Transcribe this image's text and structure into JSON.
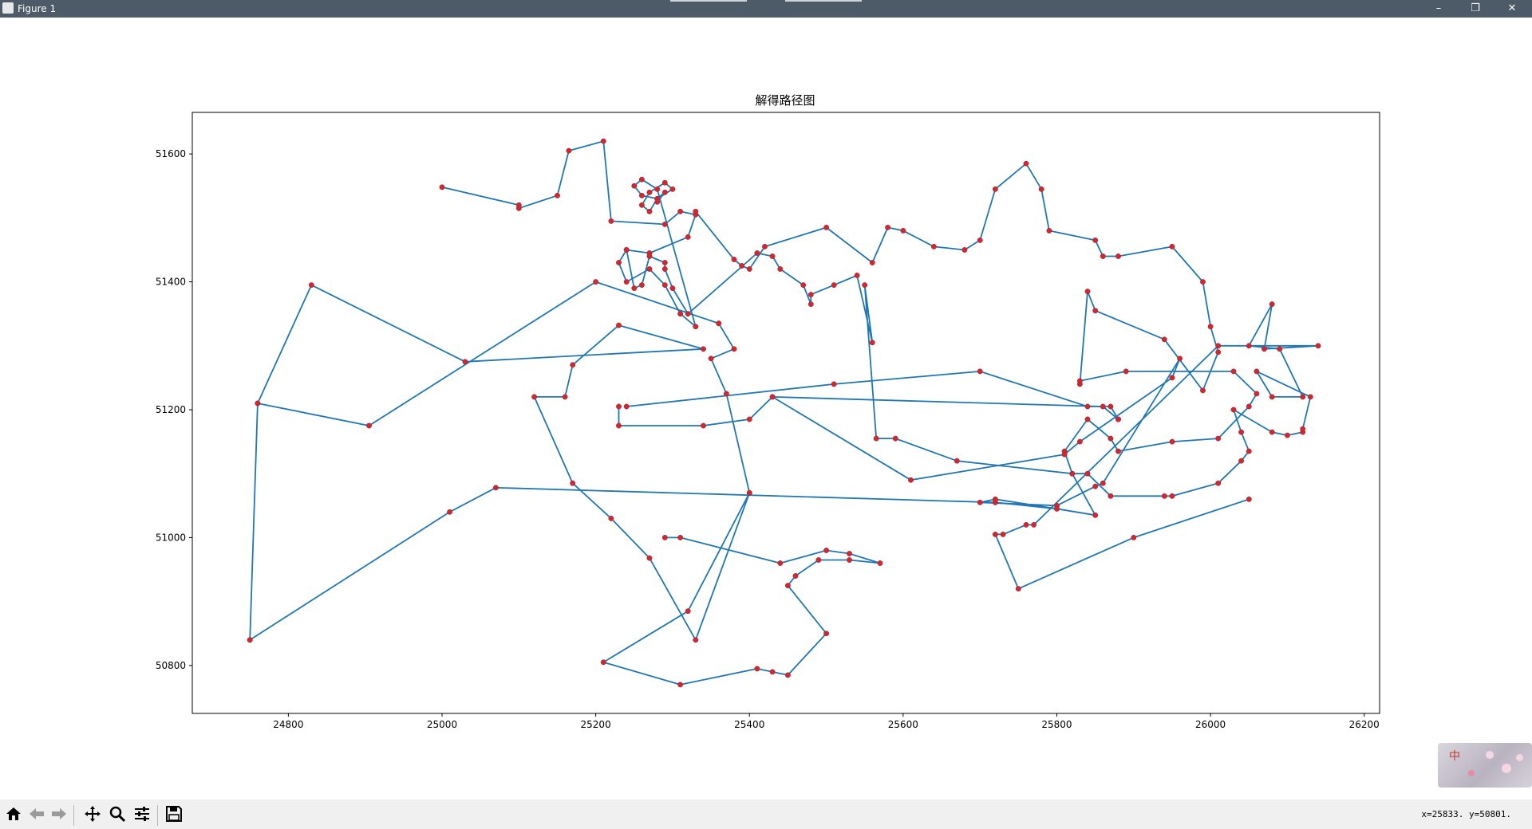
{
  "window": {
    "title": "Figure 1",
    "minimize_icon": "minimize-icon",
    "restore_icon": "restore-icon",
    "close_icon": "close-icon",
    "minimize_glyph": "–",
    "restore_glyph": "❐",
    "close_glyph": "✕"
  },
  "chart_data": {
    "type": "line",
    "title": "解得路径图",
    "xlabel": "",
    "ylabel": "",
    "xlim": [
      24675,
      26220
    ],
    "ylim": [
      50725,
      51665
    ],
    "xticks": [
      24800,
      25000,
      25200,
      25400,
      25600,
      25800,
      26000,
      26200
    ],
    "yticks": [
      50800,
      51000,
      51200,
      51400,
      51600
    ],
    "grid": false,
    "line_color": "#1f77b4",
    "marker_color": "#d62728",
    "series": [
      {
        "x": [
          24750,
          24760,
          24830,
          25030,
          25340,
          25230,
          25170,
          25160,
          25120,
          25170,
          25220,
          25270,
          25330,
          25400,
          25370,
          25350,
          25380,
          25360,
          25360,
          25200,
          24905,
          24760
        ],
        "y": [
          50840,
          51210,
          51395,
          51275,
          51295,
          51332,
          51270,
          51220,
          51220,
          51085,
          51030,
          50968,
          50840,
          51070,
          51225,
          51280,
          51295,
          51335,
          51335,
          51400,
          51175,
          51210
        ]
      },
      {
        "x": [
          24750,
          25010,
          25070,
          25720,
          25720,
          25800,
          25850,
          25820,
          25840,
          25870,
          25940,
          25950,
          26010,
          26040,
          26050,
          26040,
          26030,
          26080,
          26100,
          26120,
          26120,
          26130,
          26060,
          26080,
          26120,
          26090,
          26050,
          26080,
          26070,
          26140,
          26010,
          25770,
          25760,
          25730,
          25720,
          25750,
          25900,
          26050
        ],
        "y": [
          50840,
          51040,
          51078,
          51055,
          51055,
          51045,
          51035,
          51100,
          51100,
          51065,
          51065,
          51065,
          51085,
          51120,
          51135,
          51165,
          51200,
          51165,
          51160,
          51165,
          51170,
          51220,
          51260,
          51220,
          51220,
          51295,
          51300,
          51365,
          51295,
          51300,
          51300,
          51020,
          51020,
          51005,
          51005,
          50920,
          51000,
          51060
        ]
      },
      {
        "x": [
          25000,
          25100,
          25100,
          25150,
          25165,
          25210,
          25220,
          25290,
          25310,
          25330,
          25320,
          25270,
          25240,
          25230,
          25240,
          25270,
          25290,
          25310,
          25330,
          25280,
          25260,
          25250,
          25260,
          25280,
          25300,
          25290,
          25270,
          25260,
          25270,
          25280,
          25290,
          25280
        ],
        "y": [
          51548,
          51520,
          51515,
          51535,
          51605,
          51620,
          51495,
          51490,
          51510,
          51505,
          51470,
          51445,
          51450,
          51430,
          51400,
          51420,
          51395,
          51350,
          51330,
          51545,
          51560,
          51550,
          51535,
          51530,
          51545,
          51555,
          51540,
          51520,
          51510,
          51530,
          51540,
          51525
        ]
      },
      {
        "x": [
          25330,
          25380,
          25390,
          25400,
          25420,
          25500,
          25560,
          25580,
          25600,
          25640,
          25680,
          25700,
          25720,
          25760,
          25780,
          25790,
          25850,
          25860,
          25880,
          25950,
          25990,
          26000,
          26010,
          25990,
          25940,
          25850,
          25840,
          25830
        ],
        "y": [
          51510,
          51435,
          51425,
          51420,
          51455,
          51485,
          51430,
          51485,
          51480,
          51455,
          51450,
          51465,
          51545,
          51585,
          51545,
          51480,
          51465,
          51440,
          51440,
          51455,
          51400,
          51330,
          51290,
          51230,
          51310,
          51355,
          51385,
          51240
        ]
      },
      {
        "x": [
          25830,
          25890,
          26030,
          26060,
          26050,
          26010,
          25950,
          25880,
          25870,
          25840,
          25810,
          25820,
          25670,
          25590,
          25565,
          25550,
          25560,
          25540,
          25510,
          25480,
          25480,
          25470,
          25440,
          25430,
          25410,
          25320,
          25300,
          25290,
          25290,
          25270,
          25260,
          25250,
          25240
        ],
        "y": [
          51245,
          51260,
          51260,
          51225,
          51205,
          51155,
          51150,
          51135,
          51155,
          51185,
          51135,
          51100,
          51120,
          51155,
          51155,
          51395,
          51305,
          51410,
          51395,
          51380,
          51365,
          51395,
          51420,
          51440,
          51445,
          51350,
          51390,
          51420,
          51430,
          51440,
          51395,
          51390,
          51450
        ]
      },
      {
        "x": [
          25240,
          25510,
          25700,
          25840,
          25870,
          25880,
          25880,
          25860,
          25430,
          25400,
          25340,
          25230,
          25230
        ],
        "y": [
          51205,
          51240,
          51260,
          51205,
          51205,
          51185,
          51185,
          51205,
          51220,
          51185,
          51175,
          51175,
          51205
        ]
      },
      {
        "x": [
          25430,
          25610,
          25810,
          25830,
          25950,
          25960,
          25860,
          25850,
          25800,
          25700,
          25720,
          25800
        ],
        "y": [
          51220,
          51090,
          51130,
          51150,
          51250,
          51280,
          51085,
          51080,
          51050,
          51055,
          51060,
          51045
        ]
      },
      {
        "x": [
          25290,
          25310,
          25440,
          25500,
          25530,
          25570,
          25530,
          25490,
          25460,
          25450,
          25500,
          25450,
          25430,
          25410,
          25310,
          25210,
          25320,
          25400
        ],
        "y": [
          51000,
          51000,
          50960,
          50980,
          50975,
          50960,
          50965,
          50965,
          50940,
          50925,
          50850,
          50785,
          50790,
          50795,
          50770,
          50805,
          50885,
          51070
        ]
      }
    ]
  },
  "toolbar": {
    "home_icon": "home-icon",
    "back_icon": "back-arrow-icon",
    "forward_icon": "forward-arrow-icon",
    "pan_icon": "pan-icon",
    "zoom_icon": "zoom-icon",
    "configure_icon": "configure-subplots-icon",
    "save_icon": "save-icon",
    "coordinates": "x=25833. y=50801."
  },
  "ime": {
    "char": "中"
  }
}
